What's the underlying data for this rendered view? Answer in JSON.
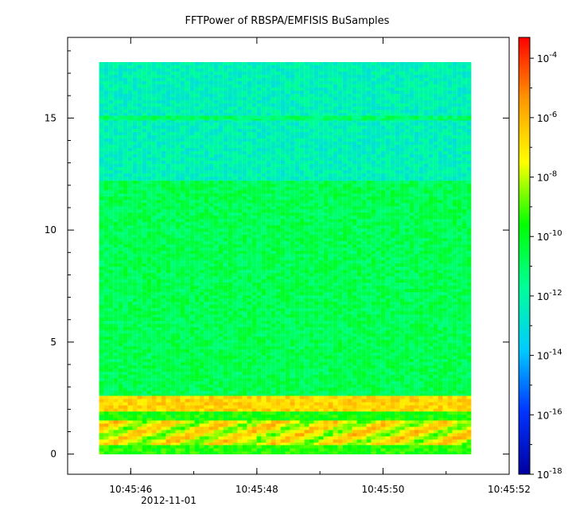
{
  "chart_data": {
    "type": "heatmap",
    "title": "FFTPower of RBSPA/EMFISIS  BuSamples",
    "xlabel": "",
    "ylabel": "",
    "x_axis": {
      "type": "time",
      "date_label": "2012-11-01",
      "range": [
        "10:45:45.0",
        "10:45:52.0"
      ],
      "ticks": [
        "10:45:46",
        "10:45:48",
        "10:45:50",
        "10:45:52"
      ],
      "data_extent": [
        "10:45:45.5",
        "10:45:51.4"
      ]
    },
    "y_axis": {
      "range": [
        -0.9,
        18.6
      ],
      "ticks": [
        0,
        5,
        10,
        15
      ],
      "data_extent": [
        0,
        17.5
      ]
    },
    "colorbar": {
      "scale": "log",
      "range_exponents": [
        -18,
        -3.3
      ],
      "colormap": "rainbow",
      "colors": [
        "#0000a0",
        "#0033ff",
        "#00ccff",
        "#00ff99",
        "#00ff00",
        "#ffff00",
        "#ff9900",
        "#ff0000"
      ],
      "ticks": [
        {
          "base": "10",
          "exp": "-4",
          "value": -4
        },
        {
          "base": "10",
          "exp": "-6",
          "value": -6
        },
        {
          "base": "10",
          "exp": "-8",
          "value": -8
        },
        {
          "base": "10",
          "exp": "-10",
          "value": -10
        },
        {
          "base": "10",
          "exp": "-12",
          "value": -12
        },
        {
          "base": "10",
          "exp": "-14",
          "value": -14
        },
        {
          "base": "10",
          "exp": "-16",
          "value": -16
        },
        {
          "base": "10",
          "exp": "-18",
          "value": -18
        }
      ]
    },
    "bands": [
      {
        "y": [
          12.2,
          17.5
        ],
        "log_power": -12.3
      },
      {
        "y": [
          14.9,
          15.1
        ],
        "log_power": -11.0
      },
      {
        "y": [
          2.6,
          12.2
        ],
        "log_power": -10.7
      },
      {
        "y": [
          1.9,
          2.6
        ],
        "log_power": -6.6
      },
      {
        "y": [
          1.5,
          1.9
        ],
        "log_power": -9.6
      },
      {
        "y": [
          0.4,
          1.5
        ],
        "log_power": -7.5
      },
      {
        "y": [
          0.0,
          0.4
        ],
        "log_power": -9.4
      }
    ]
  }
}
